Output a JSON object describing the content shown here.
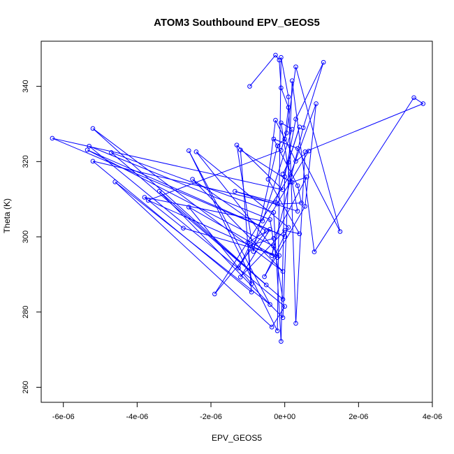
{
  "chart_data": {
    "type": "line",
    "title": "ATOM3 Southbound EPV_GEOS5",
    "xlabel": "EPV_GEOS5",
    "ylabel": "Theta (K)",
    "xlim": [
      -6.6e-06,
      4e-06
    ],
    "ylim": [
      256,
      352
    ],
    "xticks": [
      {
        "value": -6e-06,
        "label": "-6e-06"
      },
      {
        "value": -4e-06,
        "label": "-4e-06"
      },
      {
        "value": -2e-06,
        "label": "-2e-06"
      },
      {
        "value": 0,
        "label": "0e+00"
      },
      {
        "value": 2e-06,
        "label": "2e-06"
      },
      {
        "value": 4e-06,
        "label": "4e-06"
      }
    ],
    "yticks": [
      {
        "value": 260,
        "label": "260"
      },
      {
        "value": 280,
        "label": "280"
      },
      {
        "value": 300,
        "label": "300"
      },
      {
        "value": 320,
        "label": "320"
      },
      {
        "value": 340,
        "label": "340"
      }
    ],
    "grid": false,
    "series": [
      {
        "color": "#0000ff",
        "marker": "open-circle",
        "points": [
          [
            -9.5e-07,
            340.0
          ],
          [
            -2.5e-07,
            348.3
          ],
          [
            -1.5e-07,
            347.0
          ],
          [
            -1e-07,
            339.6
          ],
          [
            1e-07,
            334.4
          ],
          [
            0.0,
            326.0
          ],
          [
            -2e-07,
            324.2
          ],
          [
            -8.5e-07,
            296.1
          ],
          [
            -1.3e-06,
            324.4
          ],
          [
            -5e-08,
            312.5
          ],
          [
            -6.3e-06,
            326.2
          ],
          [
            0.0,
            300.1
          ],
          [
            -5.35e-06,
            323.1
          ],
          [
            -3e-07,
            297.5
          ],
          [
            -3.5e-07,
            295.0
          ],
          [
            5e-07,
            329.0
          ],
          [
            1.05e-06,
            346.4
          ],
          [
            3e-07,
            331.3
          ],
          [
            0.0,
            316.0
          ],
          [
            -1e-07,
            272.2
          ],
          [
            -3e-07,
            306.5
          ],
          [
            -4.7e-06,
            322.4
          ],
          [
            -5e-08,
            283.4
          ],
          [
            -4e-07,
            304.6
          ],
          [
            -5.3e-06,
            324.1
          ],
          [
            0.0,
            281.5
          ],
          [
            -3.5e-07,
            276.0
          ],
          [
            -4.6e-06,
            314.6
          ],
          [
            -4e-07,
            282.0
          ],
          [
            -2.6e-06,
            322.9
          ],
          [
            -2e-07,
            275.0
          ],
          [
            -1e-07,
            347.7
          ],
          [
            1e-07,
            337.2
          ],
          [
            3e-07,
            277.0
          ],
          [
            5.5e-07,
            322.6
          ],
          [
            3.75e-06,
            335.4
          ],
          [
            3.5e-06,
            337.0
          ],
          [
            8e-07,
            296.0
          ],
          [
            2e-07,
            341.5
          ],
          [
            -5e-08,
            278.5
          ],
          [
            -3.4e-06,
            312.1
          ],
          [
            -5e-07,
            287.2
          ],
          [
            -5.2e-06,
            328.8
          ],
          [
            -5e-08,
            290.8
          ],
          [
            -2.5e-06,
            315.3
          ],
          [
            -5e-07,
            301.5
          ],
          [
            -1.9e-06,
            284.8
          ],
          [
            1.5e-07,
            316.5
          ],
          [
            8.5e-07,
            335.4
          ],
          [
            5.5e-07,
            308.1
          ],
          [
            -5.5e-07,
            289.4
          ],
          [
            1e-07,
            302.5
          ],
          [
            -2.4e-06,
            322.6
          ],
          [
            -1.5e-07,
            295.0
          ],
          [
            -2.75e-06,
            302.3
          ],
          [
            -3.8e-06,
            310.5
          ],
          [
            -6e-07,
            304.2
          ],
          [
            2e-07,
            328.6
          ],
          [
            -1e-07,
            330.3
          ],
          [
            1.5e-07,
            314.6
          ],
          [
            -1.2e-06,
            323.1
          ],
          [
            -9e-07,
            285.3
          ],
          [
            -5.2e-06,
            320.1
          ],
          [
            -2e-07,
            308.7
          ],
          [
            4.5e-07,
            309.0
          ],
          [
            3.5e-07,
            313.6
          ],
          [
            -3e-07,
            326.0
          ],
          [
            3.5e-07,
            323.5
          ],
          [
            1.5e-06,
            301.4
          ],
          [
            3e-07,
            345.2
          ],
          [
            5e-08,
            327.6
          ],
          [
            -1e-07,
            323.0
          ],
          [
            -3.7e-06,
            309.7
          ],
          [
            -2e-07,
            294.5
          ],
          [
            -2.6e-06,
            307.9
          ],
          [
            -9e-07,
            287.5
          ],
          [
            -1e-06,
            298.5
          ],
          [
            -4e-07,
            302.0
          ],
          [
            -1.2e-06,
            289.3
          ],
          [
            0.0,
            301.7
          ],
          [
            4e-07,
            300.8
          ],
          [
            -4.5e-07,
            315.3
          ],
          [
            -2.5e-07,
            331.0
          ],
          [
            3e-07,
            320.1
          ],
          [
            6.5e-07,
            322.8
          ],
          [
            -1.25e-06,
            291.7
          ],
          [
            -9.5e-07,
            297.7
          ],
          [
            -3e-07,
            299.6
          ],
          [
            6e-07,
            315.9
          ],
          [
            2e-07,
            314.5
          ],
          [
            3.5e-07,
            306.8
          ],
          [
            -1.35e-06,
            312.1
          ],
          [
            -2.5e-07,
            309.2
          ],
          [
            4e-07,
            329.2
          ],
          [
            1e-07,
            319.8
          ],
          [
            -5e-08,
            316.7
          ]
        ]
      }
    ]
  }
}
